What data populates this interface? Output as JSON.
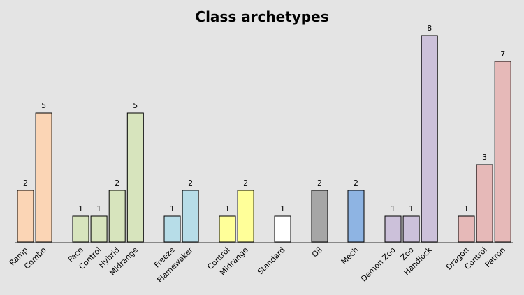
{
  "chart_data": {
    "type": "bar",
    "title": "Class archetypes",
    "xlabel": "",
    "ylabel": "",
    "ylim": [
      0,
      8
    ],
    "grid": false,
    "legend": "none",
    "groups": [
      {
        "categories": [
          "Ramp",
          "Combo"
        ],
        "values": [
          2,
          5
        ],
        "color": "#fbd5b5"
      },
      {
        "categories": [
          "Face",
          "Control",
          "Hybrid",
          "Midrange"
        ],
        "values": [
          1,
          1,
          2,
          5
        ],
        "color": "#d7e4bd"
      },
      {
        "categories": [
          "Freeze",
          "Flamewaker"
        ],
        "values": [
          1,
          2
        ],
        "color": "#b7dde8"
      },
      {
        "categories": [
          "Control",
          "Midrange"
        ],
        "values": [
          1,
          2
        ],
        "color": "#ffff99"
      },
      {
        "categories": [
          "Standard"
        ],
        "values": [
          1
        ],
        "color": "#ffffff"
      },
      {
        "categories": [
          "Oil"
        ],
        "values": [
          2
        ],
        "color": "#a6a6a6"
      },
      {
        "categories": [
          "Mech"
        ],
        "values": [
          2
        ],
        "color": "#8eb4e3"
      },
      {
        "categories": [
          "Demon Zoo",
          "Zoo",
          "Handlock"
        ],
        "values": [
          1,
          1,
          8
        ],
        "color": "#ccc1da"
      },
      {
        "categories": [
          "Dragon",
          "Control",
          "Patron"
        ],
        "values": [
          1,
          3,
          7
        ],
        "color": "#e6b9b8"
      }
    ]
  }
}
